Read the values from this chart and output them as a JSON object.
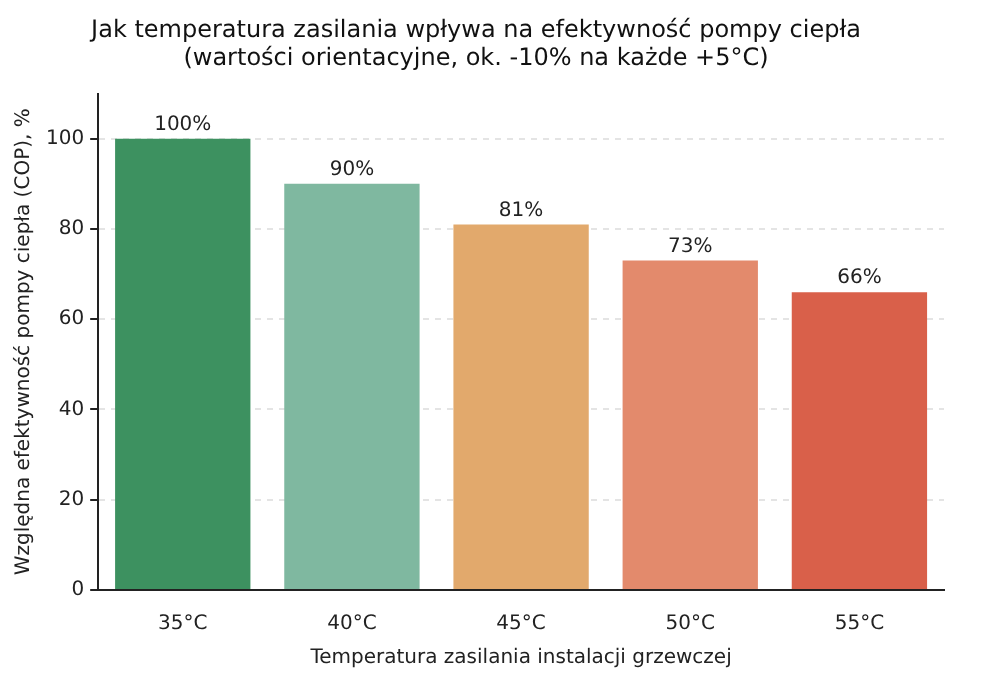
{
  "chart_data": {
    "type": "bar",
    "title": "Jak temperatura zasilania wpływa na efektywność pompy ciepła\n(wartości orientacyjne, ok. -10% na każde +5°C)",
    "xlabel": "Temperatura zasilania instalacji grzewczej",
    "ylabel": "Względna efektywność pompy ciepła (COP), %",
    "categories": [
      "35°C",
      "40°C",
      "45°C",
      "50°C",
      "55°C"
    ],
    "values": [
      100,
      90,
      81,
      73,
      66
    ],
    "value_labels": [
      "100%",
      "90%",
      "81%",
      "73%",
      "66%"
    ],
    "colors": [
      "#3d9160",
      "#7fb8a0",
      "#e2a96c",
      "#e38a6c",
      "#d9604a"
    ],
    "ylim": [
      0,
      110
    ],
    "yticks": [
      0,
      20,
      40,
      60,
      80,
      100
    ],
    "grid": "y",
    "legend": false
  }
}
